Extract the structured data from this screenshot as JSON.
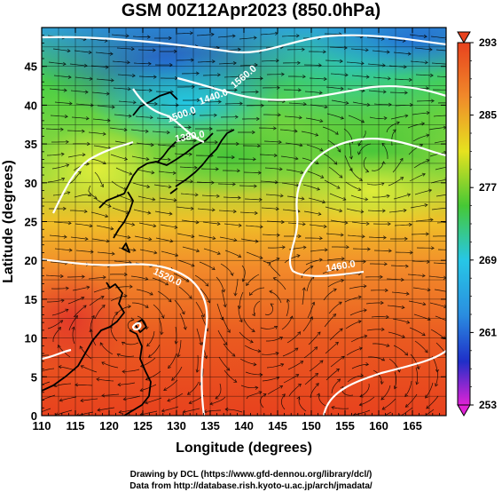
{
  "title": "GSM 00Z12Apr2023 (850.0hPa)",
  "x_axis": {
    "label": "Longitude (degrees)",
    "ticks": [
      "110",
      "115",
      "120",
      "125",
      "130",
      "135",
      "140",
      "145",
      "150",
      "155",
      "160",
      "165"
    ],
    "range": [
      110,
      170
    ]
  },
  "y_axis": {
    "label": "Latitude  (degrees)",
    "ticks": [
      "0",
      "5",
      "10",
      "15",
      "20",
      "25",
      "30",
      "35",
      "40",
      "45"
    ],
    "range": [
      0,
      50
    ]
  },
  "colorbar": {
    "ticks": [
      "293",
      "285",
      "277",
      "269",
      "261",
      "253"
    ],
    "range": [
      253,
      293
    ]
  },
  "contour_labels": [
    "1560.0",
    "1500.0",
    "1520.0",
    "1440.0",
    "1460.0",
    "1380.0"
  ],
  "colors": {
    "warm": "#e8421e",
    "green": "#3ec43a",
    "cyan": "#27c7e6",
    "blue": "#2a56d2"
  },
  "footer": {
    "line1": "Drawing by DCL (https://www.gfd-dennou.org/library/dcl/)",
    "line2": "Data from http://database.rish.kyoto-u.ac.jp/arch/jmadata/"
  }
}
